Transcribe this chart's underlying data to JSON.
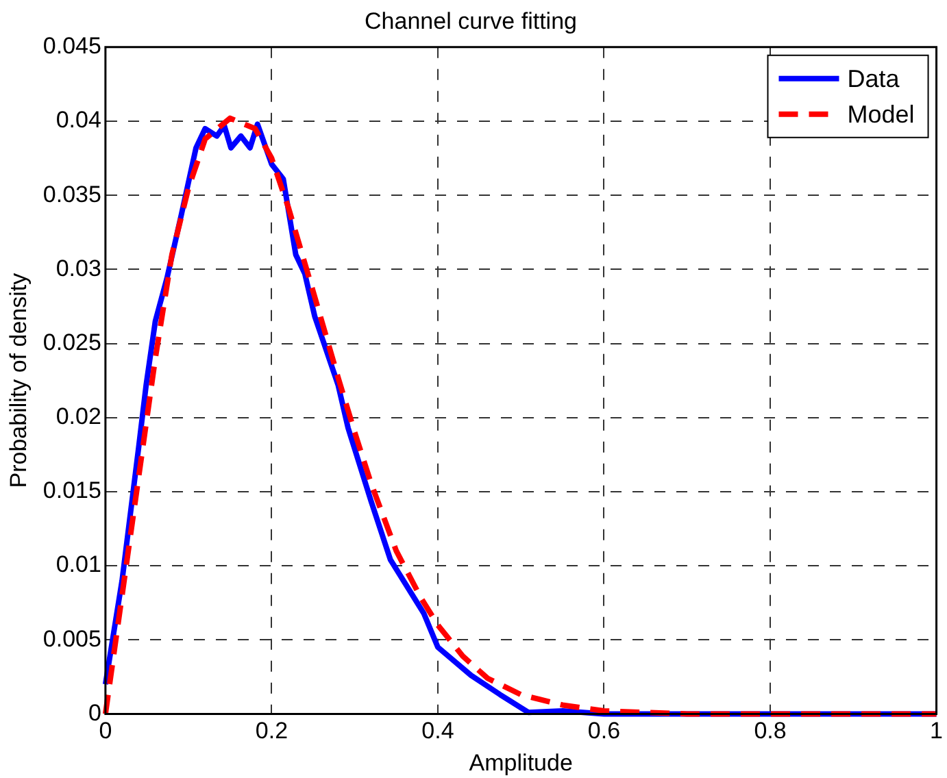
{
  "chart_data": {
    "type": "line",
    "title": "Channel curve fitting",
    "xlabel": "Amplitude",
    "ylabel": "Probability of density",
    "xlim": [
      0,
      1
    ],
    "xticks": [
      0,
      0.2,
      0.4,
      0.6,
      0.8,
      1
    ],
    "ylim": [
      0,
      0.045
    ],
    "yticks": [
      0,
      0.005,
      0.01,
      0.015,
      0.02,
      0.025,
      0.03,
      0.035,
      0.04,
      0.045
    ],
    "grid": true,
    "legend": "top right",
    "marker": "none",
    "series": [
      {
        "name": "Data",
        "color": "#0000ff",
        "line_style": "solid",
        "x": [
          0,
          0.02,
          0.04,
          0.049,
          0.06,
          0.074,
          0.091,
          0.109,
          0.12,
          0.134,
          0.143,
          0.151,
          0.163,
          0.174,
          0.183,
          0.2,
          0.214,
          0.229,
          0.24,
          0.252,
          0.263,
          0.28,
          0.292,
          0.32,
          0.343,
          0.383,
          0.4,
          0.44,
          0.475,
          0.509,
          0.55,
          0.6,
          0.7,
          0.8,
          0.9,
          1
        ],
        "values": [
          0.002,
          0.009,
          0.018,
          0.0222,
          0.0265,
          0.0294,
          0.0336,
          0.0382,
          0.0395,
          0.039,
          0.0397,
          0.0382,
          0.039,
          0.0382,
          0.0398,
          0.0371,
          0.0361,
          0.031,
          0.0297,
          0.0268,
          0.025,
          0.0222,
          0.0193,
          0.0143,
          0.0104,
          0.0068,
          0.0045,
          0.0026,
          0.0013,
          0.0001,
          0.0002,
          0,
          0,
          0,
          0,
          0
        ]
      },
      {
        "name": "Model",
        "color": "#ff0000",
        "line_style": "dashed",
        "x": [
          0,
          0.02,
          0.04,
          0.06,
          0.08,
          0.1,
          0.12,
          0.15,
          0.18,
          0.2,
          0.22,
          0.25,
          0.28,
          0.3,
          0.32,
          0.35,
          0.38,
          0.4,
          0.43,
          0.46,
          0.5,
          0.55,
          0.6,
          0.7,
          0.8,
          0.9,
          1
        ],
        "values": [
          0,
          0.008,
          0.016,
          0.024,
          0.031,
          0.0355,
          0.0388,
          0.0402,
          0.0395,
          0.0375,
          0.0342,
          0.0285,
          0.0227,
          0.019,
          0.0155,
          0.011,
          0.0078,
          0.006,
          0.0039,
          0.0024,
          0.0013,
          0.0006,
          0.0002,
          0,
          0,
          0,
          0
        ]
      }
    ]
  }
}
